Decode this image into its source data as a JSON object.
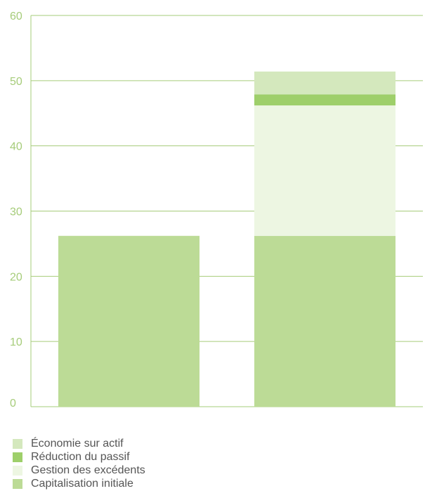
{
  "chart_data": {
    "type": "bar",
    "stacked": true,
    "categories": [
      "",
      ""
    ],
    "ylim": [
      0,
      60
    ],
    "yticks": [
      0,
      10,
      20,
      30,
      40,
      50,
      60
    ],
    "grid": true,
    "legend_position": "bottom-left",
    "series": [
      {
        "name": "Capitalisation initiale",
        "color": "#bcdb96",
        "values": [
          26.2,
          26.2
        ]
      },
      {
        "name": "Gestion des excédents",
        "color": "#edf6e2",
        "values": [
          0,
          20.0
        ]
      },
      {
        "name": "Réduction du passif",
        "color": "#9ecf6a",
        "values": [
          0,
          1.7
        ]
      },
      {
        "name": "Économie sur actif",
        "color": "#d4e8bd",
        "values": [
          0,
          3.5
        ]
      }
    ],
    "colors": {
      "axis": "#a6cc7a",
      "grid": "#a6cc7a",
      "text": "#555555"
    }
  },
  "legend": [
    {
      "label": "Économie sur actif",
      "color": "#d4e8bd"
    },
    {
      "label": "Réduction du passif",
      "color": "#9ecf6a"
    },
    {
      "label": "Gestion des excédents",
      "color": "#edf6e2"
    },
    {
      "label": "Capitalisation initiale",
      "color": "#bcdb96"
    }
  ]
}
